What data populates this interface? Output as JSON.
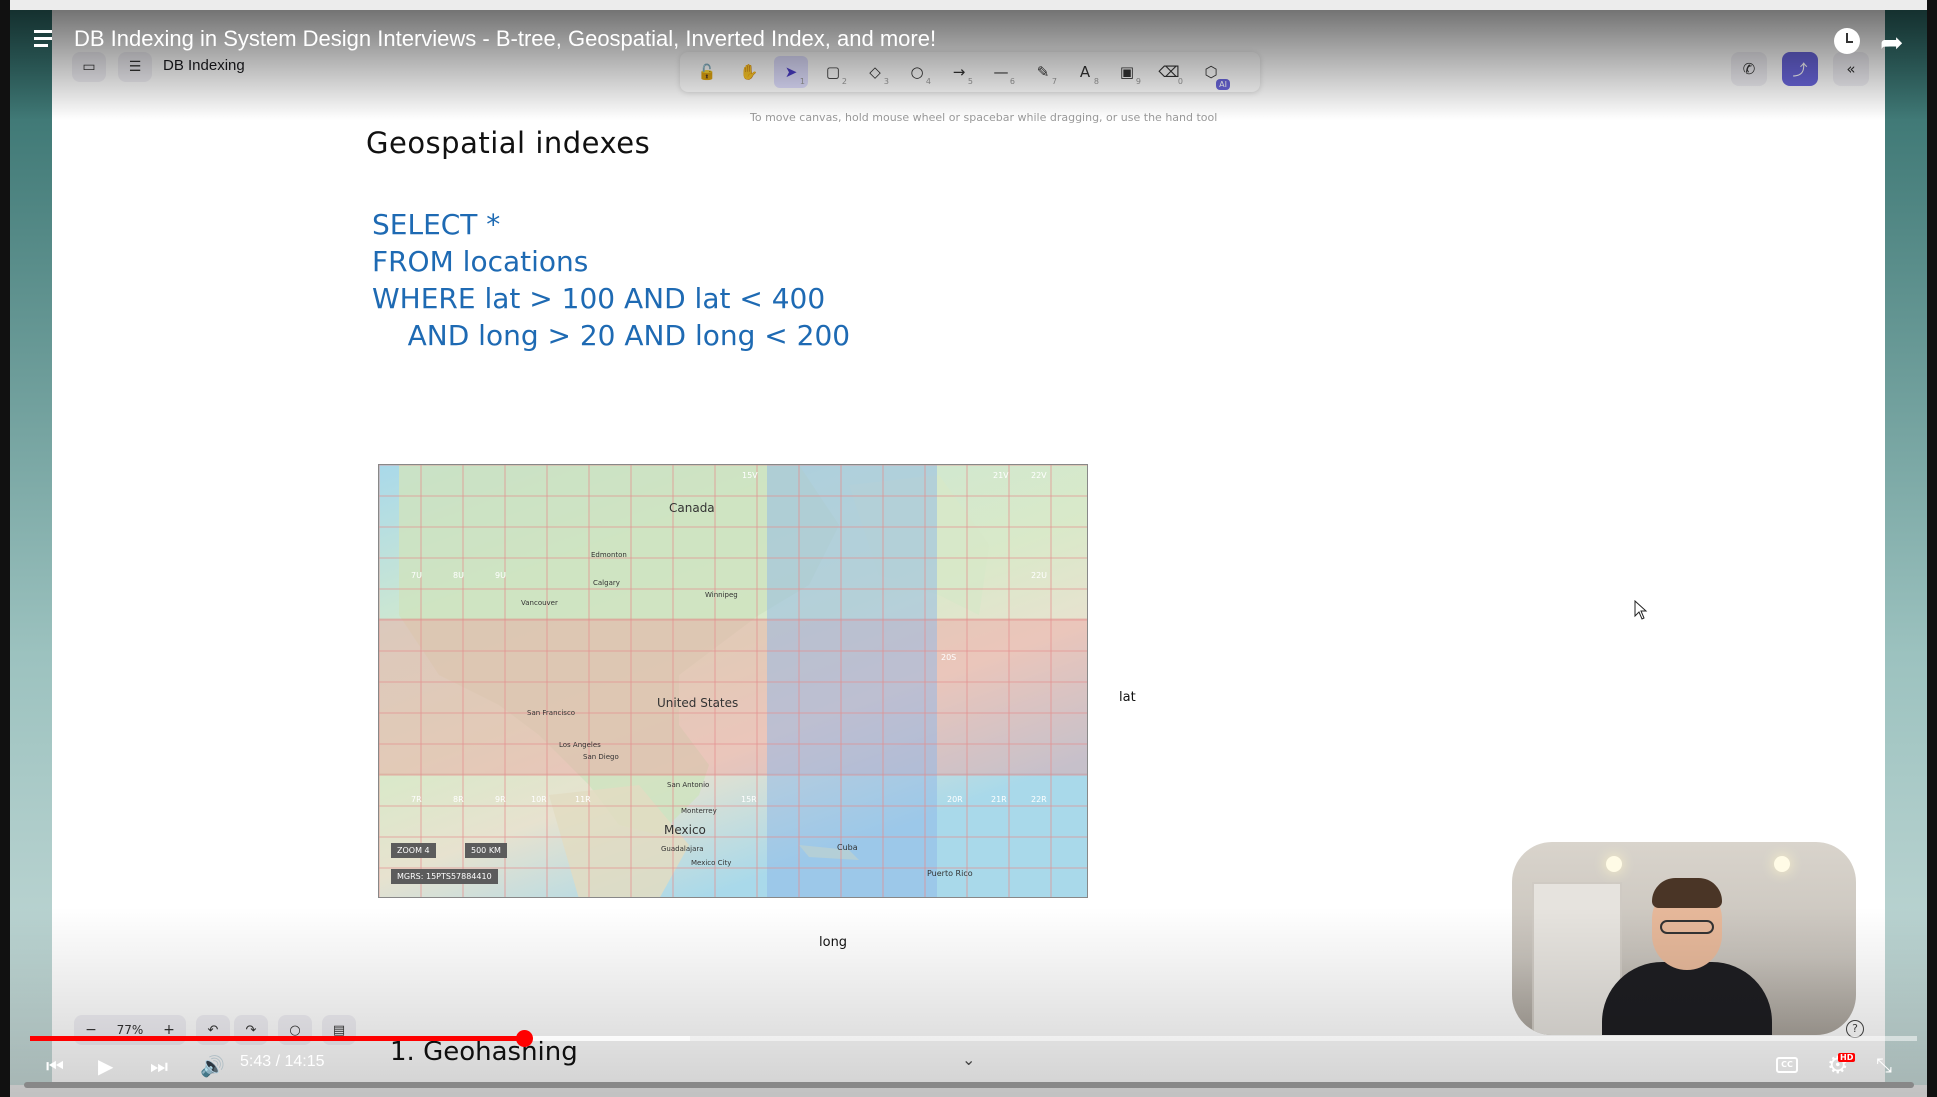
{
  "youtube": {
    "video_title": "DB Indexing in System Design Interviews - B-tree, Geospatial, Inverted Index, and more!",
    "time_display": "5:43 / 14:15",
    "progress_fraction": 0.262,
    "buffer_fraction": 0.35,
    "cc_label": "CC",
    "hd_badge": "HD"
  },
  "excalidraw": {
    "document_title": "DB Indexing",
    "hint": "To move canvas, hold mouse wheel or spacebar while dragging, or use the hand tool",
    "ai_badge": "AI",
    "zoom_level": "77%",
    "tools": [
      {
        "name": "lock",
        "glyph": "🔓",
        "key": ""
      },
      {
        "name": "hand",
        "glyph": "✋",
        "key": ""
      },
      {
        "name": "selection",
        "glyph": "➤",
        "key": "1",
        "active": true
      },
      {
        "name": "rectangle",
        "glyph": "▢",
        "key": "2"
      },
      {
        "name": "diamond",
        "glyph": "◇",
        "key": "3"
      },
      {
        "name": "ellipse",
        "glyph": "○",
        "key": "4"
      },
      {
        "name": "arrow",
        "glyph": "→",
        "key": "5"
      },
      {
        "name": "line",
        "glyph": "—",
        "key": "6"
      },
      {
        "name": "draw",
        "glyph": "✎",
        "key": "7"
      },
      {
        "name": "text",
        "glyph": "A",
        "key": "8"
      },
      {
        "name": "image",
        "glyph": "▣",
        "key": "9"
      },
      {
        "name": "eraser",
        "glyph": "⌫",
        "key": "0"
      },
      {
        "name": "extra-tools",
        "glyph": "⬡",
        "key": ""
      }
    ]
  },
  "board": {
    "heading": "Geospatial indexes",
    "sql_lines": [
      "SELECT *",
      "FROM locations",
      "WHERE lat > 100 AND lat < 400",
      "    AND long > 20 AND long < 200"
    ],
    "lat_label": "lat",
    "long_label": "long",
    "next_section": "1. Geohashing",
    "map": {
      "labels": {
        "canada": "Canada",
        "united_states": "United States",
        "mexico": "Mexico",
        "edmonton": "Edmonton",
        "calgary": "Calgary",
        "vancouver": "Vancouver",
        "winnipeg": "Winnipeg",
        "san_francisco": "San Francisco",
        "los_angeles": "Los Angeles",
        "san_diego": "San Diego",
        "san_antonio": "San Antonio",
        "monterrey": "Monterrey",
        "guadalajara": "Guadalajara",
        "mexico_city": "Mexico City",
        "cuba": "Cuba",
        "puerto_rico": "Puerto Rico",
        "grid_top_code": "15V",
        "grid_code_21v": "21V",
        "grid_code_22v": "22V",
        "grid_code_7u": "7U",
        "grid_code_8u": "8U",
        "grid_code_9u": "9U",
        "grid_code_22u": "22U",
        "grid_code_20s": "20S",
        "grid_code_20r": "20R",
        "grid_code_21r": "21R",
        "grid_code_22r": "22R",
        "grid_code_10r": "10R",
        "grid_code_11r": "11R",
        "grid_code_15r": "15R",
        "grid_code_8r": "8R",
        "grid_code_7r": "7R",
        "grid_code_9r": "9R"
      },
      "zoom_badge": "ZOOM 4",
      "scale_badge": "500 KM",
      "mgrs_badge": "MGRS: 15PTS57884410"
    }
  },
  "colors": {
    "sql_blue": "#1e6ab3",
    "lat_band": "#f0a0a0",
    "long_band": "#8fb8e8",
    "accent": "#6965db",
    "progress_red": "#ff0000"
  }
}
